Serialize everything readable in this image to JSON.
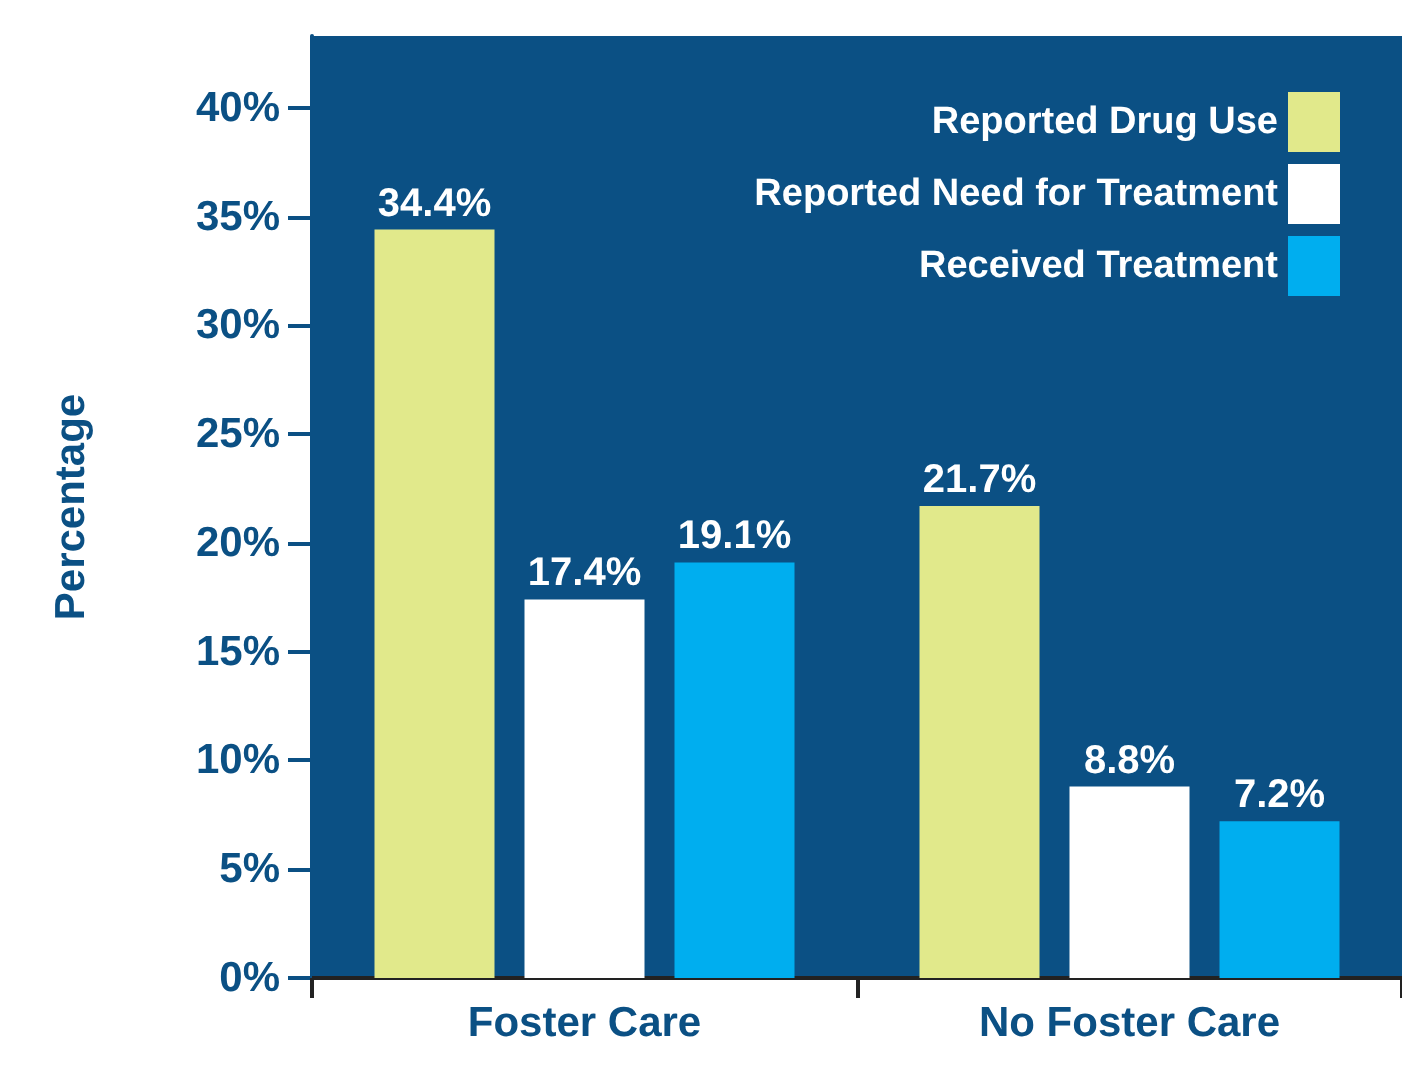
{
  "chart_data": {
    "type": "bar",
    "ylabel": "Percentage",
    "categories": [
      "Foster Care",
      "No Foster Care"
    ],
    "series": [
      {
        "name": "Reported Drug Use",
        "color": "#e1e98b",
        "values": [
          34.4,
          21.7
        ],
        "value_labels": [
          "34.4%",
          "21.7%"
        ]
      },
      {
        "name": "Reported Need for Treatment",
        "color": "#ffffff",
        "values": [
          17.4,
          8.8
        ],
        "value_labels": [
          "17.4%",
          "8.8%"
        ]
      },
      {
        "name": "Received Treatment",
        "color": "#00aeef",
        "values": [
          19.1,
          7.2
        ],
        "value_labels": [
          "19.1%",
          "7.2%"
        ]
      }
    ],
    "ylim": [
      0,
      43.3
    ],
    "yticks": [
      {
        "value": 0,
        "label": "0%"
      },
      {
        "value": 5,
        "label": "5%"
      },
      {
        "value": 10,
        "label": "10%"
      },
      {
        "value": 15,
        "label": "15%"
      },
      {
        "value": 20,
        "label": "20%"
      },
      {
        "value": 25,
        "label": "25%"
      },
      {
        "value": 30,
        "label": "30%"
      },
      {
        "value": 35,
        "label": "35%"
      },
      {
        "value": 40,
        "label": "40%"
      }
    ],
    "grid": false,
    "legend": "top right"
  }
}
